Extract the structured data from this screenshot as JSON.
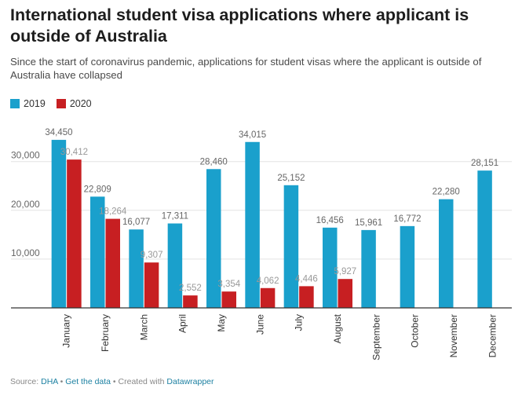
{
  "title": "International student visa applications where applicant is outside of Australia",
  "subtitle": "Since the start of coronavirus pandemic, applications for student visas where the applicant is outside of Australia have collapsed",
  "legend": [
    {
      "label": "2019",
      "color": "#1aa0cc"
    },
    {
      "label": "2020",
      "color": "#c71f22"
    }
  ],
  "footer": {
    "source_prefix": "Source: ",
    "source": "DHA",
    "sep1": " • ",
    "get_data": "Get the data",
    "sep2": " • Created with ",
    "tool": "Datawrapper"
  },
  "chart_data": {
    "type": "bar",
    "title": "International student visa applications where applicant is outside of Australia",
    "categories": [
      "January",
      "February",
      "March",
      "April",
      "May",
      "June",
      "July",
      "August",
      "September",
      "October",
      "November",
      "December"
    ],
    "series": [
      {
        "name": "2019",
        "color": "#1aa0cc",
        "values": [
          34450,
          22809,
          16077,
          17311,
          28460,
          34015,
          25152,
          16456,
          15961,
          16772,
          22280,
          28151
        ]
      },
      {
        "name": "2020",
        "color": "#c71f22",
        "values": [
          30412,
          18264,
          9307,
          2552,
          3354,
          4062,
          4446,
          5927,
          null,
          null,
          null,
          null
        ]
      }
    ],
    "value_labels": {
      "2019": [
        "34,450",
        "22,809",
        "16,077",
        "17,311",
        "28,460",
        "34,015",
        "25,152",
        "16,456",
        "15,961",
        "16,772",
        "22,280",
        "28,151"
      ],
      "2020": [
        "30,412",
        "18,264",
        "9,307",
        "2,552",
        "3,354",
        "4,062",
        "4,446",
        "5,927",
        null,
        null,
        null,
        null
      ]
    },
    "yticks": [
      10000,
      20000,
      30000
    ],
    "ytick_labels": [
      "10,000",
      "20,000",
      "30,000"
    ],
    "ylim": [
      0,
      36000
    ],
    "grid": true,
    "legend_position": "top-left"
  }
}
